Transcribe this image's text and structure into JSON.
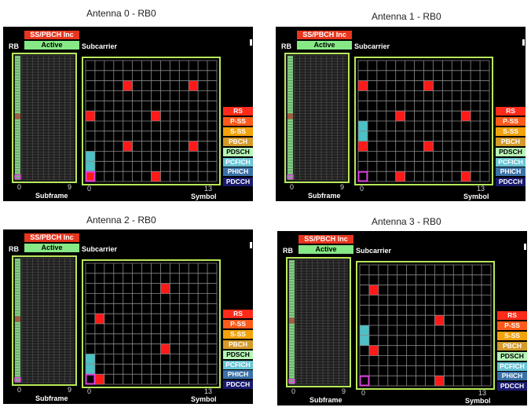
{
  "panels": [
    {
      "title": "Antenna 0 - RB0",
      "subframe_marker_row": 21,
      "cells": [
        {
          "symbol": 4,
          "subcarrier": 9,
          "type": "RS"
        },
        {
          "symbol": 11,
          "subcarrier": 9,
          "type": "RS"
        },
        {
          "symbol": 0,
          "subcarrier": 6,
          "type": "RS"
        },
        {
          "symbol": 7,
          "subcarrier": 6,
          "type": "RS"
        },
        {
          "symbol": 4,
          "subcarrier": 3,
          "type": "RS"
        },
        {
          "symbol": 11,
          "subcarrier": 3,
          "type": "RS"
        },
        {
          "symbol": 7,
          "subcarrier": 0,
          "type": "RS"
        },
        {
          "symbol": 0,
          "subcarrier": 2,
          "type": "PCFICH"
        },
        {
          "symbol": 0,
          "subcarrier": 1,
          "type": "PCFICH"
        },
        {
          "symbol": 0,
          "subcarrier": 0,
          "type": "RS",
          "selected": true
        }
      ]
    },
    {
      "title": "Antenna 1 - RB0",
      "subframe_marker_row": 21,
      "cells": [
        {
          "symbol": 0,
          "subcarrier": 9,
          "type": "RS"
        },
        {
          "symbol": 7,
          "subcarrier": 9,
          "type": "RS"
        },
        {
          "symbol": 4,
          "subcarrier": 6,
          "type": "RS"
        },
        {
          "symbol": 11,
          "subcarrier": 6,
          "type": "RS"
        },
        {
          "symbol": 0,
          "subcarrier": 5,
          "type": "PCFICH"
        },
        {
          "symbol": 0,
          "subcarrier": 4,
          "type": "PCFICH"
        },
        {
          "symbol": 0,
          "subcarrier": 3,
          "type": "RS"
        },
        {
          "symbol": 7,
          "subcarrier": 3,
          "type": "RS"
        },
        {
          "symbol": 4,
          "subcarrier": 0,
          "type": "RS"
        },
        {
          "symbol": 11,
          "subcarrier": 0,
          "type": "RS"
        },
        {
          "symbol": 0,
          "subcarrier": 0,
          "type": "none",
          "selected": true
        }
      ]
    },
    {
      "title": "Antenna 2 - RB0",
      "subframe_marker_row": 21,
      "cells": [
        {
          "symbol": 8,
          "subcarrier": 9,
          "type": "RS"
        },
        {
          "symbol": 1,
          "subcarrier": 6,
          "type": "RS"
        },
        {
          "symbol": 8,
          "subcarrier": 3,
          "type": "RS"
        },
        {
          "symbol": 0,
          "subcarrier": 2,
          "type": "PCFICH"
        },
        {
          "symbol": 0,
          "subcarrier": 1,
          "type": "PCFICH"
        },
        {
          "symbol": 1,
          "subcarrier": 0,
          "type": "RS"
        },
        {
          "symbol": 0,
          "subcarrier": 0,
          "type": "none",
          "selected": true
        }
      ]
    },
    {
      "title": "Antenna 3 - RB0",
      "subframe_marker_row": 21,
      "cells": [
        {
          "symbol": 1,
          "subcarrier": 9,
          "type": "RS"
        },
        {
          "symbol": 8,
          "subcarrier": 6,
          "type": "RS"
        },
        {
          "symbol": 0,
          "subcarrier": 5,
          "type": "PCFICH"
        },
        {
          "symbol": 0,
          "subcarrier": 4,
          "type": "PCFICH"
        },
        {
          "symbol": 1,
          "subcarrier": 3,
          "type": "RS"
        },
        {
          "symbol": 8,
          "subcarrier": 0,
          "type": "RS"
        },
        {
          "symbol": 0,
          "subcarrier": 0,
          "type": "none",
          "selected": true
        }
      ]
    }
  ],
  "controls": {
    "ss_pbch_label": "SS/PBCH Inc",
    "active_label": "Active"
  },
  "labels": {
    "rb": "RB",
    "subcarrier": "Subcarrier",
    "subframe": "Subframe",
    "symbol": "Symbol",
    "subframe_min": "0",
    "subframe_max": "9",
    "symbol_min": "0",
    "symbol_max": "13"
  },
  "legend": [
    {
      "label": "RS",
      "bg": "#ff2a1a",
      "fg": "#ffffff"
    },
    {
      "label": "P-SS",
      "bg": "#ff5a1a",
      "fg": "#ffffff"
    },
    {
      "label": "S-SS",
      "bg": "#f2a20c",
      "fg": "#ffffff"
    },
    {
      "label": "PBCH",
      "bg": "#d49a2a",
      "fg": "#ffffff"
    },
    {
      "label": "PDSCH",
      "bg": "#b6f7b6",
      "fg": "#000000"
    },
    {
      "label": "PCFICH",
      "bg": "#69c6d6",
      "fg": "#ffffff"
    },
    {
      "label": "PHICH",
      "bg": "#3b72a8",
      "fg": "#ffffff"
    },
    {
      "label": "PDCCH",
      "bg": "#1a1a6e",
      "fg": "#ffffff"
    }
  ],
  "colors": {
    "RS": "#ff1a1a",
    "PCFICH": "#4cc1c6",
    "grid_border": "#b8e85a",
    "grid_lines": "#8a8a8a",
    "rb_strip": "#7fd07f",
    "rb_marker": "#a06040",
    "selection": "#e040e0"
  }
}
